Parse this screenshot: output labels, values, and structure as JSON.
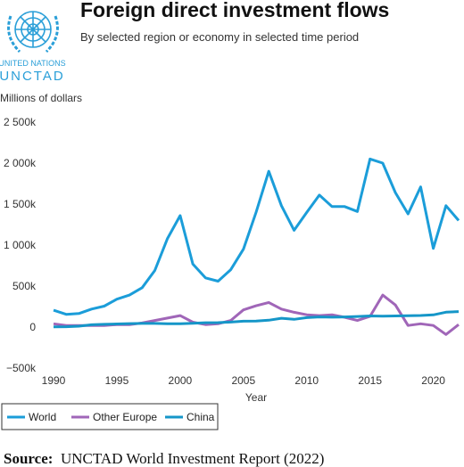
{
  "logo": {
    "line1": "UNITED NATIONS",
    "line2": "UNCTAD"
  },
  "source": {
    "label": "Source:",
    "text": "UNCTAD World Investment Report (2022)"
  },
  "chart_data": {
    "type": "line",
    "title": "Foreign direct investment flows",
    "subtitle": "By selected region or economy in selected time period",
    "y_label": "Millions of dollars",
    "x_label": "Year",
    "x": [
      1990,
      1991,
      1992,
      1993,
      1994,
      1995,
      1996,
      1997,
      1998,
      1999,
      2000,
      2001,
      2002,
      2003,
      2004,
      2005,
      2006,
      2007,
      2008,
      2009,
      2010,
      2011,
      2012,
      2013,
      2014,
      2015,
      2016,
      2017,
      2018,
      2019,
      2020,
      2021,
      2022
    ],
    "series": [
      {
        "name": "World",
        "color": "#1b9dd9",
        "values": [
          205000,
          155000,
          165000,
          220000,
          255000,
          340000,
          390000,
          480000,
          690000,
          1080000,
          1360000,
          770000,
          600000,
          560000,
          700000,
          950000,
          1400000,
          1900000,
          1480000,
          1180000,
          1400000,
          1610000,
          1470000,
          1470000,
          1410000,
          2050000,
          2000000,
          1640000,
          1380000,
          1710000,
          960000,
          1480000,
          1300000
        ]
      },
      {
        "name": "Other Europe",
        "color": "#a066b8",
        "values": [
          40000,
          20000,
          20000,
          20000,
          20000,
          30000,
          30000,
          50000,
          80000,
          110000,
          140000,
          60000,
          30000,
          40000,
          80000,
          210000,
          260000,
          300000,
          220000,
          180000,
          150000,
          140000,
          150000,
          120000,
          80000,
          130000,
          390000,
          270000,
          20000,
          40000,
          20000,
          -90000,
          30000
        ]
      },
      {
        "name": "China",
        "color": "#1596c8",
        "values": [
          3000,
          4000,
          11000,
          28000,
          34000,
          38000,
          42000,
          45000,
          45000,
          40000,
          41000,
          47000,
          53000,
          54000,
          61000,
          72000,
          73000,
          84000,
          108000,
          95000,
          115000,
          124000,
          121000,
          124000,
          129000,
          136000,
          134000,
          136000,
          138000,
          141000,
          149000,
          181000,
          189000
        ]
      }
    ],
    "xlim": [
      1990,
      2022
    ],
    "xticks": [
      1990,
      1995,
      2000,
      2005,
      2010,
      2015,
      2020
    ],
    "ylim": [
      -500000,
      2500000
    ],
    "yticks": [
      {
        "value": -500000,
        "label": "−500k"
      },
      0,
      {
        "value": 500000,
        "label": "500k"
      },
      {
        "value": 1000000,
        "label": "1 000k"
      },
      {
        "value": 1500000,
        "label": "1 500k"
      },
      {
        "value": 2000000,
        "label": "2 000k"
      },
      {
        "value": 2500000,
        "label": "2 500k"
      }
    ],
    "grid": false,
    "legend": "bottom"
  }
}
